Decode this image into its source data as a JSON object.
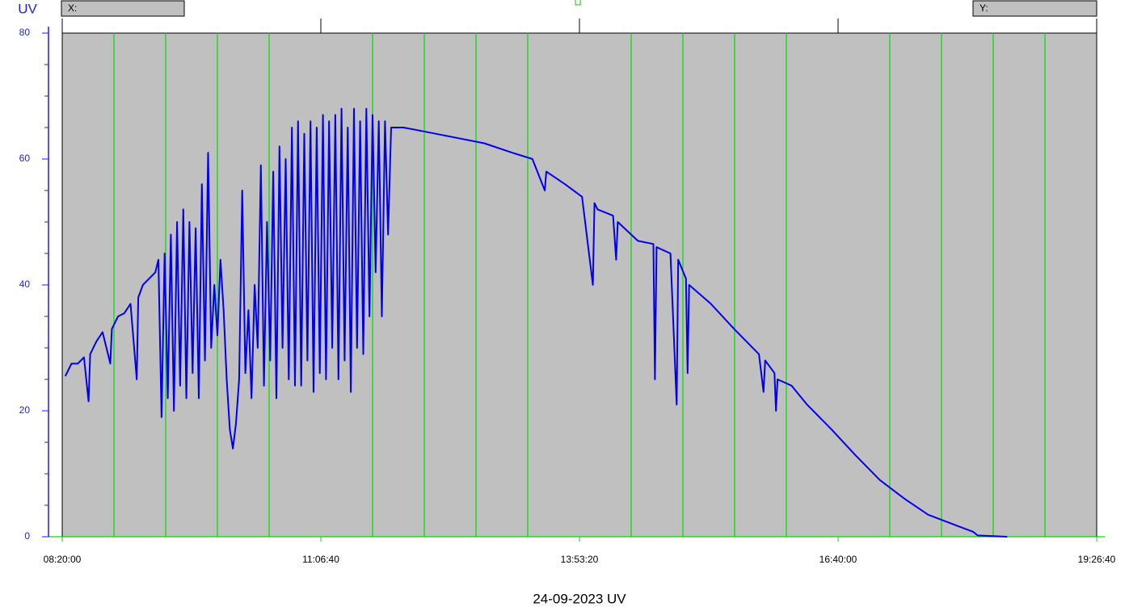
{
  "chart_data": {
    "type": "line",
    "title": "24-09-2023 UV",
    "y_label": "UV",
    "cursor": {
      "x_label": "X:",
      "y_label": "Y:"
    },
    "xlim": [
      "08:20:00",
      "19:26:40"
    ],
    "xticks": [
      "08:20:00",
      "11:06:40",
      "13:53:20",
      "16:40:00",
      "19:26:40"
    ],
    "xgrid": [
      "08:53:20",
      "09:26:40",
      "10:00:00",
      "10:33:20",
      "11:40:00",
      "12:13:20",
      "12:46:40",
      "13:20:00",
      "14:26:40",
      "15:00:00",
      "15:33:20",
      "16:06:40",
      "17:13:20",
      "17:46:40",
      "18:20:00",
      "18:53:20"
    ],
    "grid_color": "#00dd00",
    "ylim": [
      0,
      80
    ],
    "yticks": [
      0,
      20,
      40,
      60,
      80
    ],
    "yminor": [
      5,
      10,
      15,
      25,
      30,
      35,
      45,
      50,
      55,
      65,
      70,
      75
    ],
    "x": [
      "08:22:00",
      "08:26:00",
      "08:30:00",
      "08:34:00",
      "08:37:00",
      "08:38:00",
      "08:42:00",
      "08:46:00",
      "08:51:00",
      "08:52:00",
      "08:56:00",
      "09:00:00",
      "09:04:00",
      "09:08:00",
      "09:09:00",
      "09:12:00",
      "09:16:00",
      "09:20:00",
      "09:22:00",
      "09:24:00",
      "09:26:00",
      "09:28:00",
      "09:30:00",
      "09:32:00",
      "09:34:00",
      "09:36:00",
      "09:38:00",
      "09:40:00",
      "09:42:00",
      "09:44:00",
      "09:46:00",
      "09:48:00",
      "09:50:00",
      "09:52:00",
      "09:54:00",
      "09:56:00",
      "09:58:00",
      "10:00:00",
      "10:02:00",
      "10:04:00",
      "10:06:00",
      "10:08:00",
      "10:10:00",
      "10:12:00",
      "10:14:00",
      "10:16:00",
      "10:18:00",
      "10:20:00",
      "10:22:00",
      "10:24:00",
      "10:26:00",
      "10:28:00",
      "10:30:00",
      "10:32:00",
      "10:34:00",
      "10:36:00",
      "10:38:00",
      "10:40:00",
      "10:42:00",
      "10:44:00",
      "10:46:00",
      "10:48:00",
      "10:50:00",
      "10:52:00",
      "10:54:00",
      "10:56:00",
      "10:58:00",
      "11:00:00",
      "11:02:00",
      "11:04:00",
      "11:06:00",
      "11:08:00",
      "11:10:00",
      "11:12:00",
      "11:14:00",
      "11:16:00",
      "11:18:00",
      "11:20:00",
      "11:22:00",
      "11:24:00",
      "11:26:00",
      "11:28:00",
      "11:30:00",
      "11:32:00",
      "11:34:00",
      "11:36:00",
      "11:38:00",
      "11:40:00",
      "11:42:00",
      "11:44:00",
      "11:46:00",
      "11:48:00",
      "11:50:00",
      "11:52:00",
      "12:00:00",
      "12:21:00",
      "12:52:00",
      "13:10:00",
      "13:23:00",
      "13:31:00",
      "13:32:00",
      "13:44:00",
      "13:55:00",
      "14:02:00",
      "14:03:00",
      "14:05:00",
      "14:15:00",
      "14:17:00",
      "14:18:00",
      "14:31:00",
      "14:41:00",
      "14:42:00",
      "14:43:00",
      "14:52:00",
      "14:56:00",
      "14:57:00",
      "15:02:00",
      "15:03:00",
      "15:04:00",
      "15:18:00",
      "15:33:00",
      "15:49:00",
      "15:52:00",
      "15:53:00",
      "15:59:00",
      "16:00:00",
      "16:01:00",
      "16:10:00",
      "16:20:00",
      "16:36:00",
      "16:51:00",
      "17:07:00",
      "17:23:00",
      "17:38:00",
      "17:54:00",
      "18:07:00",
      "18:10:00",
      "18:29:00"
    ],
    "series": [
      {
        "name": "UV",
        "color": "#0000ee",
        "values": [
          25.5,
          27.5,
          27.5,
          28.5,
          21.5,
          29,
          31,
          32.5,
          27.5,
          33,
          35,
          35.5,
          37,
          25,
          38,
          40,
          41,
          42,
          44,
          19,
          45,
          22,
          48,
          20,
          50,
          24,
          52,
          22,
          50,
          26,
          49,
          22,
          56,
          28,
          61,
          30,
          40,
          32,
          44,
          36,
          25,
          17,
          14,
          18,
          25,
          55,
          26,
          36,
          22,
          40,
          30,
          59,
          24,
          50,
          28,
          58,
          22,
          62,
          30,
          60,
          25,
          65,
          24,
          66,
          24,
          64,
          28,
          66,
          23,
          65,
          26,
          67,
          25,
          66,
          30,
          67,
          25,
          68,
          28,
          65,
          23,
          68,
          30,
          66,
          29,
          68,
          35,
          67,
          42,
          66,
          35,
          66,
          48,
          65,
          65,
          64,
          62.5,
          61,
          60,
          55,
          58,
          56,
          54,
          40,
          53,
          52,
          51,
          44,
          50,
          47,
          46.5,
          25,
          46,
          45,
          21,
          44,
          41,
          26,
          40,
          37,
          33,
          29,
          23,
          28,
          26,
          20,
          25,
          24,
          21,
          17,
          13,
          9,
          6,
          3.5,
          2,
          0.8,
          0.2,
          0
        ]
      }
    ]
  }
}
